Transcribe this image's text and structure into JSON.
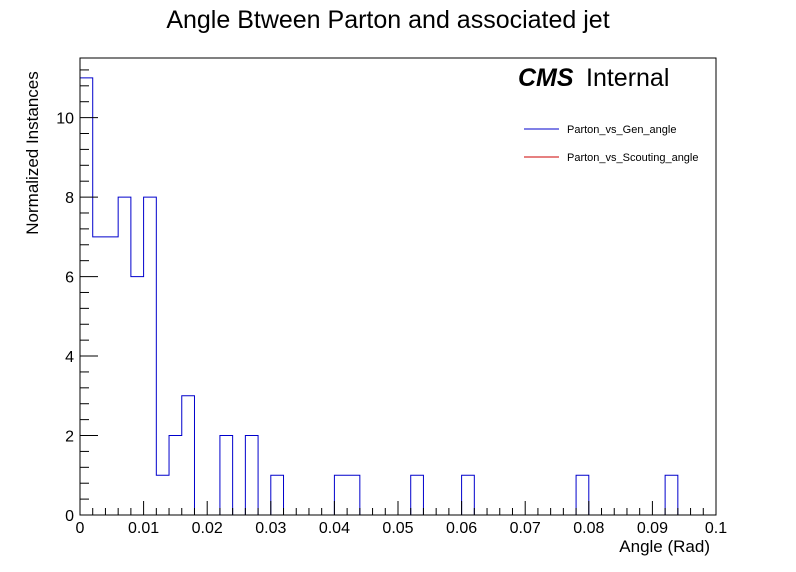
{
  "chart_data": {
    "type": "histogram",
    "title": "Angle Btween Parton and associated jet",
    "xlabel": "Angle (Rad)",
    "ylabel": "Normalized Instances",
    "xlim": [
      0,
      0.1
    ],
    "ylim": [
      0,
      11.5
    ],
    "bin_width": 0.002,
    "x_ticks": [
      0,
      0.01,
      0.02,
      0.03,
      0.04,
      0.05,
      0.06,
      0.07,
      0.08,
      0.09,
      0.1
    ],
    "x_tick_labels": [
      "0",
      "0.01",
      "0.02",
      "0.03",
      "0.04",
      "0.05",
      "0.06",
      "0.07",
      "0.08",
      "0.09",
      "0.1"
    ],
    "y_ticks": [
      0,
      2,
      4,
      6,
      8,
      10
    ],
    "y_tick_labels": [
      "0",
      "2",
      "4",
      "6",
      "8",
      "10"
    ],
    "grid": false,
    "legend_position": "top-right",
    "series": [
      {
        "name": "Parton_vs_Gen_angle",
        "color": "#0000cc",
        "values": [
          11,
          7,
          7,
          8,
          6,
          8,
          1,
          2,
          3,
          0,
          0,
          2,
          0,
          2,
          0,
          1,
          0,
          0,
          0,
          0,
          1,
          1,
          0,
          0,
          0,
          0,
          1,
          0,
          0,
          0,
          1,
          0,
          0,
          0,
          0,
          0,
          0,
          0,
          0,
          1,
          0,
          0,
          0,
          0,
          0,
          0,
          1,
          0,
          0,
          0
        ]
      },
      {
        "name": "Parton_vs_Scouting_angle",
        "color": "#cc0000",
        "values": []
      }
    ]
  },
  "experiment": {
    "name": "CMS",
    "status": "Internal"
  }
}
